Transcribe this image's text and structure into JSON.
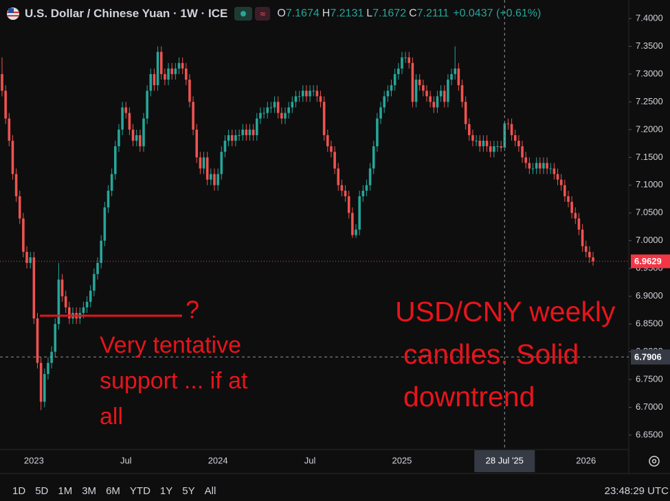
{
  "chart_data": {
    "type": "candlestick",
    "title": "U.S. Dollar / Chinese Yuan · 1W · ICE",
    "ohlc_labels": [
      "O",
      "H",
      "L",
      "C"
    ],
    "change": "+0.0437 (+0.61%)",
    "up_color": "#26a69a",
    "down_color": "#ef5350",
    "categories": [
      null,
      null,
      null,
      null,
      null,
      null,
      null,
      null,
      null,
      "2023",
      null,
      null,
      null,
      null,
      null,
      null,
      null,
      null,
      null,
      null,
      null,
      null,
      null,
      null,
      null,
      null,
      null,
      null,
      null,
      null,
      null,
      null,
      null,
      null,
      null,
      "Jul",
      null,
      null,
      null,
      null,
      null,
      null,
      null,
      null,
      null,
      null,
      null,
      null,
      null,
      null,
      null,
      null,
      null,
      null,
      null,
      null,
      null,
      null,
      null,
      null,
      null,
      "2024",
      null,
      null,
      null,
      null,
      null,
      null,
      null,
      null,
      null,
      null,
      null,
      null,
      null,
      null,
      null,
      null,
      null,
      null,
      null,
      null,
      null,
      null,
      null,
      null,
      null,
      "Jul",
      null,
      null,
      null,
      null,
      null,
      null,
      null,
      null,
      null,
      null,
      null,
      null,
      null,
      null,
      null,
      null,
      null,
      null,
      null,
      null,
      null,
      null,
      null,
      null,
      null,
      "2025",
      null,
      null,
      null,
      null,
      null,
      null,
      null,
      null,
      null,
      null,
      null,
      null,
      null,
      null,
      null,
      null,
      null,
      null,
      null,
      null,
      null,
      null,
      null,
      null,
      null,
      null,
      null,
      null,
      "28 Jul '25",
      null,
      null,
      null,
      null,
      null,
      null,
      null,
      null,
      null,
      null,
      null,
      null,
      null,
      null,
      null,
      null,
      null,
      null,
      null,
      null,
      null,
      null,
      "2026",
      null,
      null
    ],
    "open": [
      7.3,
      7.27,
      7.22,
      7.18,
      7.12,
      7.08,
      7.04,
      6.98,
      6.96,
      6.97,
      6.86,
      6.78,
      6.71,
      6.76,
      6.78,
      6.8,
      6.85,
      6.93,
      6.9,
      6.88,
      6.86,
      6.87,
      6.86,
      6.87,
      6.88,
      6.89,
      6.91,
      6.94,
      6.96,
      7.0,
      7.06,
      7.09,
      7.12,
      7.17,
      7.2,
      7.24,
      7.23,
      7.2,
      7.18,
      7.19,
      7.17,
      7.22,
      7.27,
      7.3,
      7.28,
      7.34,
      7.3,
      7.29,
      7.31,
      7.3,
      7.31,
      7.32,
      7.31,
      7.29,
      7.25,
      7.2,
      7.15,
      7.13,
      7.15,
      7.11,
      7.12,
      7.1,
      7.12,
      7.16,
      7.18,
      7.19,
      7.18,
      7.19,
      7.19,
      7.2,
      7.19,
      7.2,
      7.19,
      7.22,
      7.23,
      7.23,
      7.24,
      7.24,
      7.25,
      7.23,
      7.22,
      7.23,
      7.24,
      7.25,
      7.26,
      7.26,
      7.27,
      7.26,
      7.27,
      7.27,
      7.26,
      7.25,
      7.19,
      7.17,
      7.16,
      7.13,
      7.1,
      7.09,
      7.08,
      7.05,
      7.01,
      7.02,
      7.08,
      7.09,
      7.1,
      7.13,
      7.17,
      7.22,
      7.24,
      7.26,
      7.27,
      7.28,
      7.3,
      7.31,
      7.33,
      7.33,
      7.32,
      7.25,
      7.29,
      7.28,
      7.27,
      7.26,
      7.25,
      7.24,
      7.26,
      7.27,
      7.25,
      7.29,
      7.3,
      7.31,
      7.28,
      7.25,
      7.21,
      7.19,
      7.18,
      7.18,
      7.17,
      7.18,
      7.17,
      7.16,
      7.17,
      7.17,
      7.1674,
      7.2111,
      7.21,
      7.19,
      7.18,
      7.17,
      7.15,
      7.14,
      7.13,
      7.13,
      7.14,
      7.13,
      7.14,
      7.13,
      7.13,
      7.12,
      7.11,
      7.1,
      7.08,
      7.07,
      7.05,
      7.04,
      7.02,
      6.99,
      6.98,
      6.97
    ],
    "high": [
      7.33,
      7.28,
      7.23,
      7.19,
      7.13,
      7.09,
      7.05,
      6.99,
      6.98,
      6.98,
      6.87,
      6.79,
      6.77,
      6.79,
      6.81,
      6.86,
      6.96,
      6.94,
      6.91,
      6.89,
      6.88,
      6.88,
      6.88,
      6.89,
      6.9,
      6.92,
      6.95,
      6.97,
      7.01,
      7.07,
      7.1,
      7.13,
      7.18,
      7.21,
      7.25,
      7.25,
      7.24,
      7.21,
      7.2,
      7.2,
      7.23,
      7.28,
      7.31,
      7.31,
      7.35,
      7.35,
      7.31,
      7.32,
      7.32,
      7.32,
      7.33,
      7.33,
      7.32,
      7.3,
      7.26,
      7.21,
      7.16,
      7.16,
      7.16,
      7.13,
      7.13,
      7.13,
      7.17,
      7.19,
      7.2,
      7.2,
      7.2,
      7.2,
      7.21,
      7.21,
      7.21,
      7.21,
      7.23,
      7.24,
      7.24,
      7.25,
      7.25,
      7.26,
      7.26,
      7.24,
      7.24,
      7.25,
      7.26,
      7.27,
      7.27,
      7.28,
      7.28,
      7.28,
      7.28,
      7.28,
      7.27,
      7.26,
      7.2,
      7.18,
      7.17,
      7.14,
      7.11,
      7.1,
      7.09,
      7.06,
      7.03,
      7.09,
      7.1,
      7.11,
      7.14,
      7.18,
      7.23,
      7.25,
      7.27,
      7.28,
      7.29,
      7.31,
      7.32,
      7.34,
      7.34,
      7.34,
      7.33,
      7.3,
      7.3,
      7.29,
      7.28,
      7.27,
      7.26,
      7.27,
      7.28,
      7.28,
      7.3,
      7.31,
      7.35,
      7.32,
      7.29,
      7.26,
      7.22,
      7.2,
      7.19,
      7.19,
      7.19,
      7.19,
      7.18,
      7.18,
      7.18,
      7.18,
      7.2131,
      7.22,
      7.22,
      7.2,
      7.19,
      7.18,
      7.16,
      7.15,
      7.14,
      7.15,
      7.15,
      7.15,
      7.15,
      7.14,
      7.14,
      7.13,
      7.12,
      7.11,
      7.09,
      7.08,
      7.06,
      7.05,
      7.03,
      7.0,
      6.99,
      6.98
    ],
    "low": [
      7.26,
      7.21,
      7.17,
      7.11,
      7.07,
      7.03,
      6.97,
      6.95,
      6.95,
      6.85,
      6.77,
      6.695,
      6.7,
      6.75,
      6.77,
      6.79,
      6.84,
      6.89,
      6.87,
      6.85,
      6.85,
      6.85,
      6.85,
      6.86,
      6.87,
      6.88,
      6.9,
      6.93,
      6.95,
      6.99,
      7.05,
      7.08,
      7.11,
      7.16,
      7.19,
      7.22,
      7.19,
      7.17,
      7.17,
      7.16,
      7.16,
      7.21,
      7.26,
      7.27,
      7.27,
      7.29,
      7.28,
      7.28,
      7.29,
      7.29,
      7.3,
      7.3,
      7.28,
      7.24,
      7.19,
      7.14,
      7.12,
      7.12,
      7.1,
      7.1,
      7.09,
      7.09,
      7.11,
      7.15,
      7.17,
      7.17,
      7.17,
      7.18,
      7.18,
      7.18,
      7.18,
      7.18,
      7.18,
      7.21,
      7.22,
      7.22,
      7.23,
      7.23,
      7.22,
      7.21,
      7.21,
      7.22,
      7.23,
      7.24,
      7.25,
      7.25,
      7.25,
      7.25,
      7.26,
      7.25,
      7.24,
      7.18,
      7.16,
      7.15,
      7.12,
      7.09,
      7.08,
      7.07,
      7.04,
      7.005,
      7.005,
      7.01,
      7.07,
      7.08,
      7.09,
      7.12,
      7.16,
      7.21,
      7.23,
      7.25,
      7.26,
      7.27,
      7.29,
      7.3,
      7.32,
      7.31,
      7.24,
      7.24,
      7.27,
      7.26,
      7.25,
      7.24,
      7.23,
      7.23,
      7.25,
      7.24,
      7.24,
      7.28,
      7.29,
      7.27,
      7.24,
      7.2,
      7.18,
      7.17,
      7.17,
      7.16,
      7.16,
      7.16,
      7.15,
      7.15,
      7.16,
      7.16,
      7.1672,
      7.2,
      7.18,
      7.17,
      7.16,
      7.14,
      7.13,
      7.12,
      7.12,
      7.12,
      7.12,
      7.12,
      7.12,
      7.12,
      7.11,
      7.1,
      7.09,
      7.07,
      7.06,
      7.04,
      7.03,
      7.01,
      6.98,
      6.97,
      6.96,
      6.955
    ],
    "close": [
      7.27,
      7.22,
      7.18,
      7.12,
      7.08,
      7.04,
      6.98,
      6.96,
      6.97,
      6.86,
      6.78,
      6.71,
      6.76,
      6.78,
      6.8,
      6.85,
      6.93,
      6.9,
      6.88,
      6.86,
      6.87,
      6.86,
      6.87,
      6.88,
      6.89,
      6.91,
      6.94,
      6.96,
      7.0,
      7.06,
      7.09,
      7.12,
      7.17,
      7.2,
      7.24,
      7.23,
      7.2,
      7.18,
      7.19,
      7.17,
      7.22,
      7.27,
      7.3,
      7.28,
      7.34,
      7.3,
      7.29,
      7.31,
      7.3,
      7.31,
      7.32,
      7.31,
      7.29,
      7.25,
      7.2,
      7.15,
      7.13,
      7.15,
      7.11,
      7.12,
      7.1,
      7.12,
      7.16,
      7.18,
      7.19,
      7.18,
      7.19,
      7.19,
      7.2,
      7.19,
      7.2,
      7.19,
      7.22,
      7.23,
      7.23,
      7.24,
      7.24,
      7.25,
      7.23,
      7.22,
      7.23,
      7.24,
      7.25,
      7.26,
      7.26,
      7.27,
      7.26,
      7.27,
      7.27,
      7.26,
      7.25,
      7.19,
      7.17,
      7.16,
      7.13,
      7.1,
      7.09,
      7.08,
      7.05,
      7.01,
      7.02,
      7.08,
      7.09,
      7.1,
      7.13,
      7.17,
      7.22,
      7.24,
      7.26,
      7.27,
      7.28,
      7.3,
      7.31,
      7.33,
      7.33,
      7.32,
      7.25,
      7.29,
      7.28,
      7.27,
      7.26,
      7.25,
      7.24,
      7.26,
      7.27,
      7.25,
      7.29,
      7.3,
      7.31,
      7.28,
      7.25,
      7.21,
      7.19,
      7.18,
      7.18,
      7.17,
      7.18,
      7.17,
      7.16,
      7.17,
      7.17,
      7.1674,
      7.2111,
      7.21,
      7.19,
      7.18,
      7.17,
      7.15,
      7.14,
      7.13,
      7.13,
      7.14,
      7.13,
      7.14,
      7.13,
      7.13,
      7.12,
      7.11,
      7.1,
      7.08,
      7.07,
      7.05,
      7.04,
      7.02,
      6.99,
      6.98,
      6.97,
      6.9629
    ],
    "hover_index_label": 142,
    "ylim": [
      6.624,
      7.4334
    ],
    "yticks": [
      {
        "value": 6.65,
        "label": "6.6500"
      },
      {
        "value": 6.7,
        "label": "6.7000"
      },
      {
        "value": 6.75,
        "label": "6.7500"
      },
      {
        "value": 6.8,
        "label": "6.8000"
      },
      {
        "value": 6.85,
        "label": "6.8500"
      },
      {
        "value": 6.9,
        "label": "6.9000"
      },
      {
        "value": 6.95,
        "label": "6.9500"
      },
      {
        "value": 7.0,
        "label": "7.0000"
      },
      {
        "value": 7.05,
        "label": "7.0500"
      },
      {
        "value": 7.1,
        "label": "7.1000"
      },
      {
        "value": 7.15,
        "label": "7.1500"
      },
      {
        "value": 7.2,
        "label": "7.2000"
      },
      {
        "value": 7.25,
        "label": "7.2500"
      },
      {
        "value": 7.3,
        "label": "7.3000"
      },
      {
        "value": 7.35,
        "label": "7.3500"
      },
      {
        "value": 7.4,
        "label": "7.4000"
      }
    ],
    "crosshair_price": {
      "value": 6.7906,
      "label": "6.7906"
    },
    "support_line": {
      "value": 6.865,
      "label": "?"
    },
    "annotation_left": [
      "Very tentative",
      "support ... if at",
      "all"
    ],
    "annotation_right": [
      "USD/CNY weekly",
      "candles. Solid",
      "downtrend"
    ]
  },
  "toolbar": {
    "ranges": [
      "1D",
      "5D",
      "1M",
      "3M",
      "6M",
      "YTD",
      "1Y",
      "5Y",
      "All"
    ],
    "time": "23:48:29 UTC"
  }
}
